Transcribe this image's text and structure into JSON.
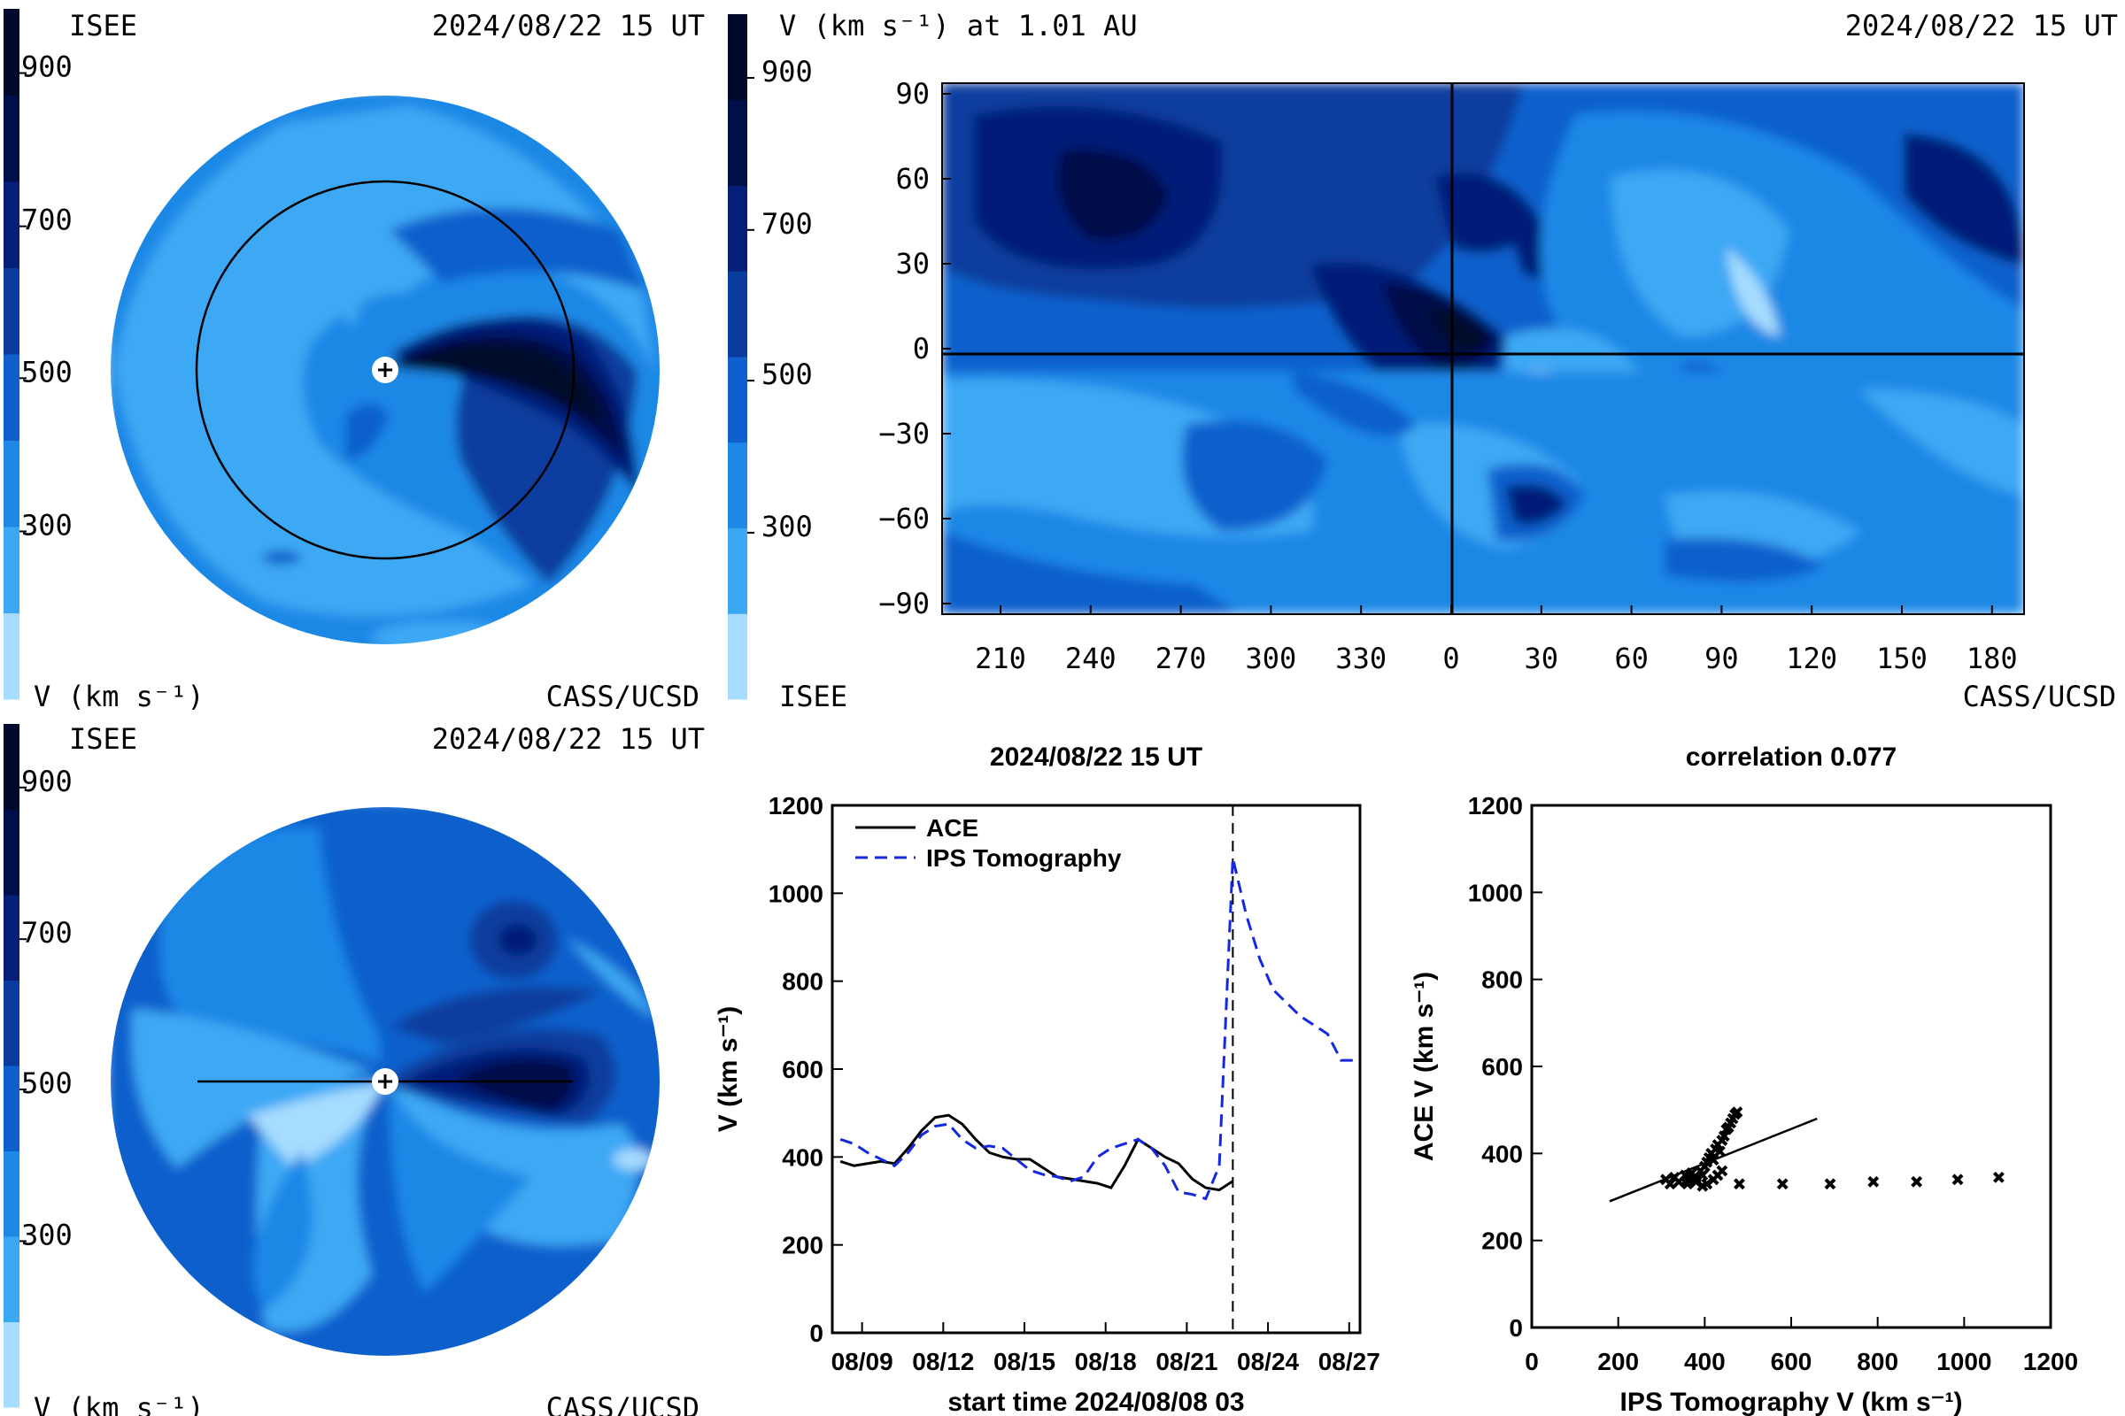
{
  "colors": {
    "levels": [
      "#a6dcff",
      "#3ca8f4",
      "#1e88e6",
      "#0e60cc",
      "#0a3c9e",
      "#061f78",
      "#000e4a",
      "#00082b"
    ],
    "ace": "#000000",
    "ips": "#1428e0"
  },
  "polar_top": {
    "left_label": "ISEE",
    "date_label": "2024/08/22 15 UT",
    "unit_label": "V (km s⁻¹)",
    "credit": "CASS/UCSD"
  },
  "polar_bottom": {
    "left_label": "ISEE",
    "date_label": "2024/08/22 15 UT",
    "unit_label": "V (km s⁻¹)",
    "credit": "CASS/UCSD"
  },
  "colorbar_ticks": [
    "900",
    "700",
    "500",
    "300"
  ],
  "map": {
    "title": "V (km s⁻¹) at 1.01 AU",
    "date_label": "2024/08/22 15 UT",
    "left_credit": "ISEE",
    "right_credit": "CASS/UCSD",
    "x_ticks": [
      "210",
      "240",
      "270",
      "300",
      "330",
      "0",
      "30",
      "60",
      "90",
      "120",
      "150",
      "180"
    ],
    "y_ticks": [
      "90",
      "60",
      "30",
      "0",
      "−30",
      "−60",
      "−90"
    ]
  },
  "chart_data": [
    {
      "type": "line",
      "title": "2024/08/22 15 UT",
      "xlabel": "start time 2024/08/08 03",
      "ylabel": "V (km s⁻¹)",
      "ylim": [
        0,
        1200
      ],
      "x_tick_labels": [
        "08/09",
        "08/12",
        "08/15",
        "08/18",
        "08/21",
        "08/24",
        "08/27"
      ],
      "y_tick_labels": [
        "0",
        "200",
        "400",
        "600",
        "800",
        "1000",
        "1200"
      ],
      "legend_position": "top-left",
      "event_marker_day": 14.5,
      "series": [
        {
          "name": "ACE",
          "style": "solid",
          "x": [
            0,
            0.5,
            1,
            1.5,
            2,
            2.5,
            3,
            3.5,
            4,
            4.5,
            5,
            5.5,
            6,
            6.5,
            7,
            7.5,
            8,
            8.5,
            9,
            9.5,
            10,
            10.5,
            11,
            11.5,
            12,
            12.5,
            13,
            13.5,
            14,
            14.5
          ],
          "y": [
            390,
            380,
            385,
            390,
            385,
            420,
            460,
            490,
            495,
            475,
            440,
            410,
            400,
            395,
            395,
            375,
            355,
            350,
            345,
            340,
            330,
            380,
            440,
            420,
            400,
            385,
            350,
            330,
            325,
            345
          ]
        },
        {
          "name": "IPS Tomography",
          "style": "dashed",
          "x": [
            0,
            0.5,
            1,
            1.5,
            2,
            2.5,
            3,
            3.5,
            4,
            4.5,
            5,
            5.5,
            6,
            6.5,
            7,
            7.5,
            8,
            8.5,
            9,
            9.5,
            10,
            10.5,
            11,
            11.5,
            12,
            12.5,
            13,
            13.5,
            14,
            14.5,
            15,
            15.5,
            16,
            16.5,
            17,
            17.5,
            18,
            18.5,
            19
          ],
          "y": [
            440,
            430,
            410,
            395,
            380,
            410,
            450,
            470,
            475,
            440,
            420,
            425,
            420,
            395,
            370,
            360,
            355,
            345,
            355,
            400,
            420,
            430,
            440,
            420,
            380,
            320,
            315,
            305,
            380,
            1080,
            950,
            850,
            780,
            750,
            720,
            700,
            680,
            620,
            620
          ]
        }
      ]
    },
    {
      "type": "scatter",
      "title": "correlation 0.077",
      "xlabel": "IPS Tomography V (km s⁻¹)",
      "ylabel": "ACE V (km s⁻¹)",
      "xlim": [
        0,
        1200
      ],
      "ylim": [
        0,
        1200
      ],
      "x_tick_labels": [
        "0",
        "200",
        "400",
        "600",
        "800",
        "1000",
        "1200"
      ],
      "y_tick_labels": [
        "0",
        "200",
        "400",
        "600",
        "800",
        "1000",
        "1200"
      ],
      "points": [
        [
          310,
          340
        ],
        [
          320,
          330
        ],
        [
          330,
          345
        ],
        [
          340,
          335
        ],
        [
          355,
          350
        ],
        [
          360,
          340
        ],
        [
          370,
          355
        ],
        [
          380,
          345
        ],
        [
          390,
          360
        ],
        [
          395,
          350
        ],
        [
          400,
          370
        ],
        [
          405,
          380
        ],
        [
          410,
          390
        ],
        [
          415,
          400
        ],
        [
          420,
          385
        ],
        [
          425,
          410
        ],
        [
          430,
          420
        ],
        [
          435,
          405
        ],
        [
          440,
          430
        ],
        [
          445,
          440
        ],
        [
          450,
          455
        ],
        [
          455,
          460
        ],
        [
          460,
          470
        ],
        [
          465,
          480
        ],
        [
          470,
          490
        ],
        [
          475,
          495
        ],
        [
          420,
          340
        ],
        [
          430,
          350
        ],
        [
          440,
          360
        ],
        [
          360,
          330
        ],
        [
          380,
          335
        ],
        [
          395,
          325
        ],
        [
          405,
          330
        ],
        [
          480,
          330
        ],
        [
          580,
          330
        ],
        [
          690,
          330
        ],
        [
          790,
          335
        ],
        [
          890,
          335
        ],
        [
          985,
          340
        ],
        [
          1080,
          345
        ]
      ],
      "fit_line": [
        [
          180,
          290
        ],
        [
          660,
          480
        ]
      ]
    }
  ]
}
